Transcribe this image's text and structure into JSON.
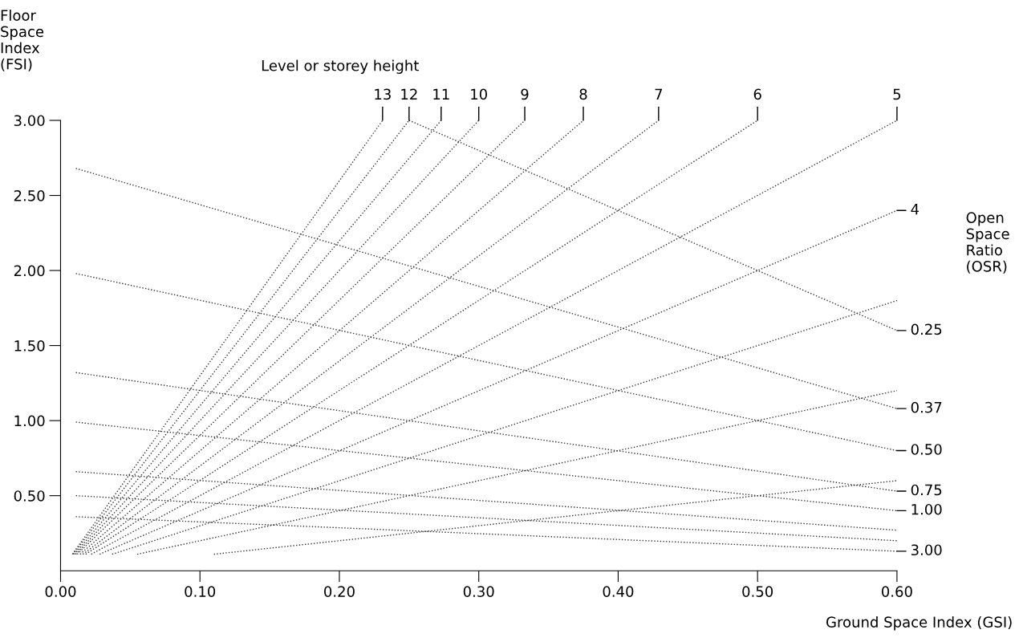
{
  "chart_data": {
    "type": "line",
    "annotations": [
      "Level or storey height"
    ],
    "xlabel": "Ground Space Index (GSI)",
    "ylabel": "Floor\nSpace\nIndex\n(FSI)",
    "y2label": "Open\nSpace\nRatio\n(OSR)",
    "xlim": [
      0,
      0.6
    ],
    "ylim": [
      0,
      3.0
    ],
    "xticks": [
      {
        "value": 0,
        "label": "0.00"
      },
      {
        "value": 0.1,
        "label": "0.10"
      },
      {
        "value": 0.2,
        "label": "0.20"
      },
      {
        "value": 0.3,
        "label": "0.30"
      },
      {
        "value": 0.4,
        "label": "0.40"
      },
      {
        "value": 0.5,
        "label": "0.50"
      },
      {
        "value": 0.6,
        "label": "0.60"
      }
    ],
    "yticks": [
      {
        "value": 0.5,
        "label": "0.50"
      },
      {
        "value": 1.0,
        "label": "1.00"
      },
      {
        "value": 1.5,
        "label": "1.50"
      },
      {
        "value": 2.0,
        "label": "2.00"
      },
      {
        "value": 2.5,
        "label": "2.50"
      },
      {
        "value": 3.0,
        "label": "3.00"
      }
    ],
    "line_style": "dotted",
    "grid": false,
    "legend": false,
    "series": [
      {
        "color": "#333333",
        "x": [
          0.11,
          0.6
        ],
        "values": [
          0.11,
          0.6
        ]
      },
      {
        "color": "#333333",
        "x": [
          0.055,
          0.6
        ],
        "values": [
          0.11,
          1.2
        ]
      },
      {
        "color": "#333333",
        "x": [
          0.037,
          0.6
        ],
        "values": [
          0.11,
          1.8
        ]
      },
      {
        "name": "4",
        "color": "#333333",
        "x": [
          0.028,
          0.6
        ],
        "values": [
          0.11,
          2.4
        ]
      },
      {
        "name": "5",
        "color": "#333333",
        "x": [
          0.022,
          0.6
        ],
        "values": [
          0.11,
          3.0
        ]
      },
      {
        "name": "6",
        "color": "#333333",
        "x": [
          0.018,
          0.5
        ],
        "values": [
          0.11,
          3.0
        ]
      },
      {
        "name": "7",
        "color": "#333333",
        "x": [
          0.016,
          0.429
        ],
        "values": [
          0.11,
          3.0
        ]
      },
      {
        "name": "8",
        "color": "#333333",
        "x": [
          0.014,
          0.375
        ],
        "values": [
          0.11,
          3.0
        ]
      },
      {
        "name": "9",
        "color": "#333333",
        "x": [
          0.012,
          0.333
        ],
        "values": [
          0.11,
          3.0
        ]
      },
      {
        "name": "10",
        "color": "#333333",
        "x": [
          0.011,
          0.3
        ],
        "values": [
          0.11,
          3.0
        ]
      },
      {
        "name": "11",
        "color": "#333333",
        "x": [
          0.01,
          0.273
        ],
        "values": [
          0.11,
          3.0
        ]
      },
      {
        "name": "12",
        "color": "#333333",
        "x": [
          0.009,
          0.25
        ],
        "values": [
          0.11,
          3.0
        ]
      },
      {
        "name": "13",
        "color": "#333333",
        "x": [
          0.0085,
          0.231
        ],
        "values": [
          0.11,
          3.0
        ]
      },
      {
        "name": "0.25",
        "color": "#333333",
        "x": [
          0.25,
          0.6
        ],
        "values": [
          3.0,
          1.6
        ]
      },
      {
        "name": "0.37",
        "color": "#333333",
        "x": [
          0.011,
          0.6
        ],
        "values": [
          2.68,
          1.08
        ]
      },
      {
        "name": "0.50",
        "color": "#333333",
        "x": [
          0.011,
          0.6
        ],
        "values": [
          1.98,
          0.8
        ]
      },
      {
        "name": "0.75",
        "color": "#333333",
        "x": [
          0.011,
          0.6
        ],
        "values": [
          1.32,
          0.53
        ]
      },
      {
        "name": "1.00",
        "color": "#333333",
        "x": [
          0.011,
          0.6
        ],
        "values": [
          0.99,
          0.4
        ]
      },
      {
        "color": "#333333",
        "x": [
          0.011,
          0.6
        ],
        "values": [
          0.66,
          0.27
        ]
      },
      {
        "color": "#333333",
        "x": [
          0.011,
          0.6
        ],
        "values": [
          0.5,
          0.2
        ]
      },
      {
        "name": "3.00",
        "color": "#333333",
        "x": [
          0.011,
          0.6
        ],
        "values": [
          0.36,
          0.13
        ]
      }
    ]
  }
}
